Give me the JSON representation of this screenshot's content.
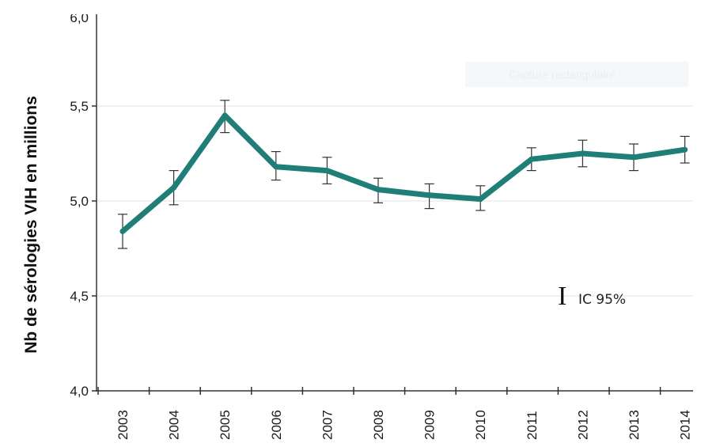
{
  "chart_data": {
    "type": "line",
    "title": "",
    "ylabel": "Nb de sérologies VIH en millions",
    "xlabel": "",
    "ylim": [
      4.0,
      5.9
    ],
    "y_ticks": [
      4.0,
      4.5,
      5.0,
      5.5
    ],
    "y_tick_labels": [
      "4,0",
      "4,5",
      "5,0",
      "5,5"
    ],
    "y_top_label_partial": "6,0",
    "categories": [
      "2003",
      "2004",
      "2005",
      "2006",
      "2007",
      "2008",
      "2009",
      "2010",
      "2011",
      "2012",
      "2013",
      "2014"
    ],
    "series": [
      {
        "values": [
          4.84,
          5.07,
          5.45,
          5.18,
          5.16,
          5.06,
          5.03,
          5.01,
          5.22,
          5.25,
          5.23,
          5.27
        ],
        "ci_low": [
          4.75,
          4.98,
          5.36,
          5.11,
          5.09,
          4.99,
          4.96,
          4.95,
          5.16,
          5.18,
          5.16,
          5.2
        ],
        "ci_high": [
          4.93,
          5.16,
          5.53,
          5.26,
          5.23,
          5.12,
          5.09,
          5.08,
          5.28,
          5.32,
          5.3,
          5.34
        ],
        "color": "#1f7f78"
      }
    ],
    "grid": "horizontal",
    "legend": {
      "glyph": "I",
      "label": "IC 95%",
      "placement": "lower-right"
    },
    "watermark_text": "Capture rectangulaire"
  }
}
